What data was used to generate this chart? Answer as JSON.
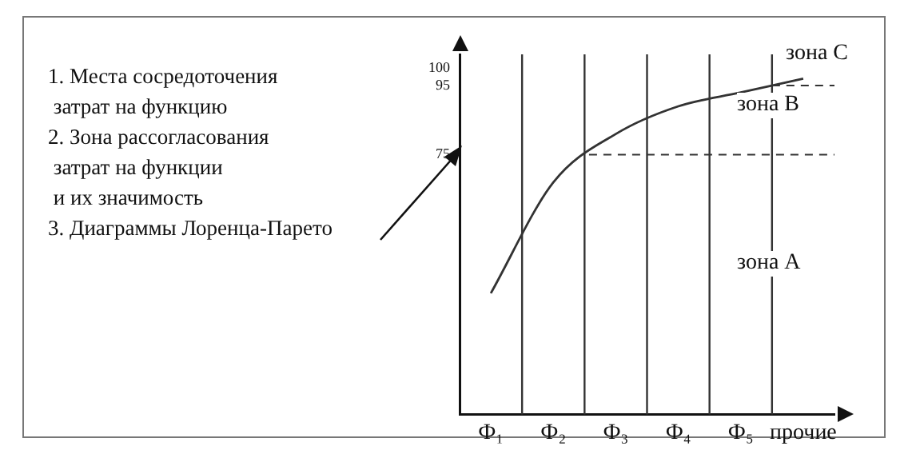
{
  "chart_data": {
    "type": "line",
    "categories": [
      "Ф₁",
      "Ф₂",
      "Ф₃",
      "Ф₄",
      "Ф₅",
      "прочие"
    ],
    "series": [
      {
        "color": "#333333",
        "values": [
          35,
          67,
          81,
          89,
          93,
          97
        ]
      }
    ],
    "ylim": [
      0,
      104
    ],
    "yticks": [
      75,
      95,
      100
    ],
    "ref_lines": [
      {
        "axis": "y",
        "value": 75,
        "line_style": "dashed",
        "color": "#333333"
      },
      {
        "axis": "y",
        "value": 95,
        "line_style": "dashed",
        "color": "#333333"
      }
    ],
    "annotations": [
      "1. Места сосредоточения\n затрат на функцию\n2. Зона рассогласования\n затрат на функции\n и их значимость\n3. Диаграммы Лоренца-Парето",
      "зона C",
      "зона B",
      "зона A"
    ],
    "grid": "x",
    "legend": false,
    "marker": "none",
    "line_style": "solid"
  }
}
